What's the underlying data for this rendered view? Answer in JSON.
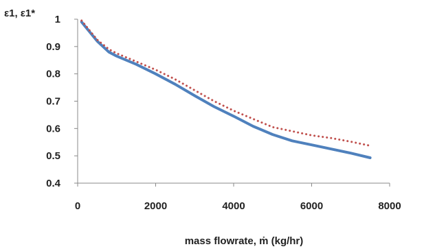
{
  "chart_data": {
    "type": "line",
    "title": "",
    "ylabel": "ε1, ε1*",
    "xlabel": "mass flowrate, ṁ (kg/hr)",
    "xlim": [
      0,
      8000
    ],
    "ylim": [
      0.4,
      1.0
    ],
    "x_ticks": [
      "0",
      "2000",
      "4000",
      "6000",
      "8000"
    ],
    "y_ticks": [
      "0.4",
      "0.5",
      "0.6",
      "0.7",
      "0.8",
      "0.9",
      "1"
    ],
    "grid": false,
    "legend": "none",
    "series": [
      {
        "style": "solid",
        "color": "#4f81bd",
        "x": [
          100,
          300,
          500,
          800,
          1000,
          1500,
          2000,
          2500,
          3000,
          3500,
          4000,
          4500,
          5000,
          5500,
          6000,
          6500,
          7000,
          7500
        ],
        "y": [
          0.99,
          0.955,
          0.92,
          0.88,
          0.865,
          0.835,
          0.8,
          0.762,
          0.72,
          0.68,
          0.645,
          0.608,
          0.578,
          0.555,
          0.54,
          0.525,
          0.51,
          0.493
        ]
      },
      {
        "style": "dotted",
        "color": "#c0504d",
        "x": [
          100,
          300,
          500,
          800,
          1000,
          1500,
          2000,
          2500,
          3000,
          3500,
          4000,
          4500,
          5000,
          5500,
          6000,
          6500,
          7000,
          7500
        ],
        "y": [
          0.995,
          0.96,
          0.925,
          0.89,
          0.875,
          0.845,
          0.815,
          0.78,
          0.74,
          0.7,
          0.665,
          0.635,
          0.605,
          0.59,
          0.575,
          0.565,
          0.552,
          0.537
        ]
      }
    ]
  }
}
